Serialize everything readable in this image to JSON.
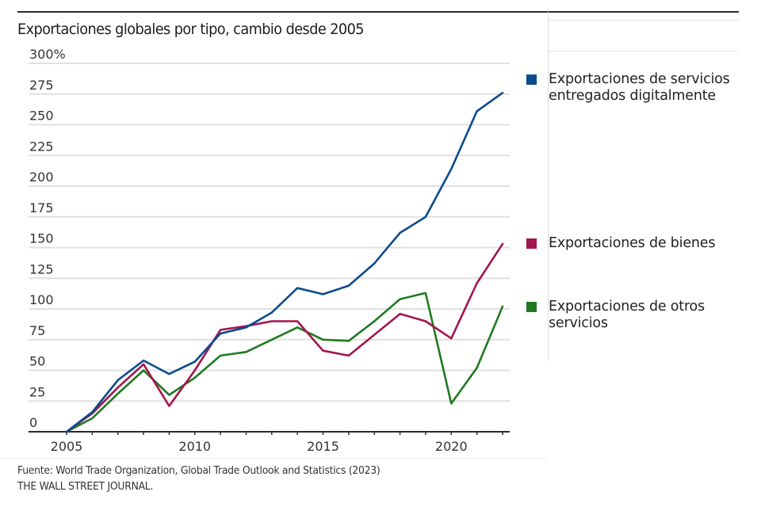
{
  "chart_data": {
    "type": "line",
    "title": "Exportaciones globales por tipo, cambio desde 2005",
    "xlabel": "",
    "ylabel": "",
    "x": [
      2005,
      2006,
      2007,
      2008,
      2009,
      2010,
      2011,
      2012,
      2013,
      2014,
      2015,
      2016,
      2017,
      2018,
      2019,
      2020,
      2021,
      2022
    ],
    "xlim": [
      2005,
      2022
    ],
    "ylim": [
      0,
      300
    ],
    "y_unit": "%",
    "x_ticks": [
      2005,
      2010,
      2015,
      2020
    ],
    "x_tick_labels": [
      "2005",
      "2010",
      "2015",
      "2020"
    ],
    "y_ticks": [
      0,
      25,
      50,
      75,
      100,
      125,
      150,
      175,
      200,
      225,
      250,
      275,
      300
    ],
    "y_tick_labels": [
      "0",
      "25",
      "50",
      "75",
      "100",
      "125",
      "150",
      "175",
      "200",
      "225",
      "250",
      "275",
      "300%"
    ],
    "grid": true,
    "legend_position": "right",
    "series": [
      {
        "name": "Exportaciones de servicios entregados digitalmente",
        "legend_lines": [
          "Exportaciones de servicios",
          "entregados digitalmente"
        ],
        "color": "#0a4b8c",
        "values": [
          0,
          16,
          42,
          58,
          47,
          57,
          80,
          85,
          97,
          117,
          112,
          119,
          137,
          162,
          175,
          214,
          261,
          276
        ]
      },
      {
        "name": "Exportaciones de bienes",
        "legend_lines": [
          "Exportaciones de bienes"
        ],
        "color": "#a3154f",
        "values": [
          0,
          15,
          36,
          55,
          21,
          50,
          83,
          86,
          90,
          90,
          66,
          62,
          79,
          96,
          90,
          76,
          121,
          153
        ]
      },
      {
        "name": "Exportaciones de otros servicios",
        "legend_lines": [
          "Exportaciones de otros",
          "servicios"
        ],
        "color": "#217a22",
        "values": [
          0,
          11,
          31,
          50,
          30,
          44,
          62,
          65,
          75,
          85,
          75,
          74,
          90,
          108,
          113,
          23,
          52,
          102
        ]
      }
    ]
  },
  "footer": {
    "source": "Fuente: World Trade Organization, Global Trade Outlook and Statistics (2023)",
    "brand": "THE WALL STREET JOURNAL."
  }
}
